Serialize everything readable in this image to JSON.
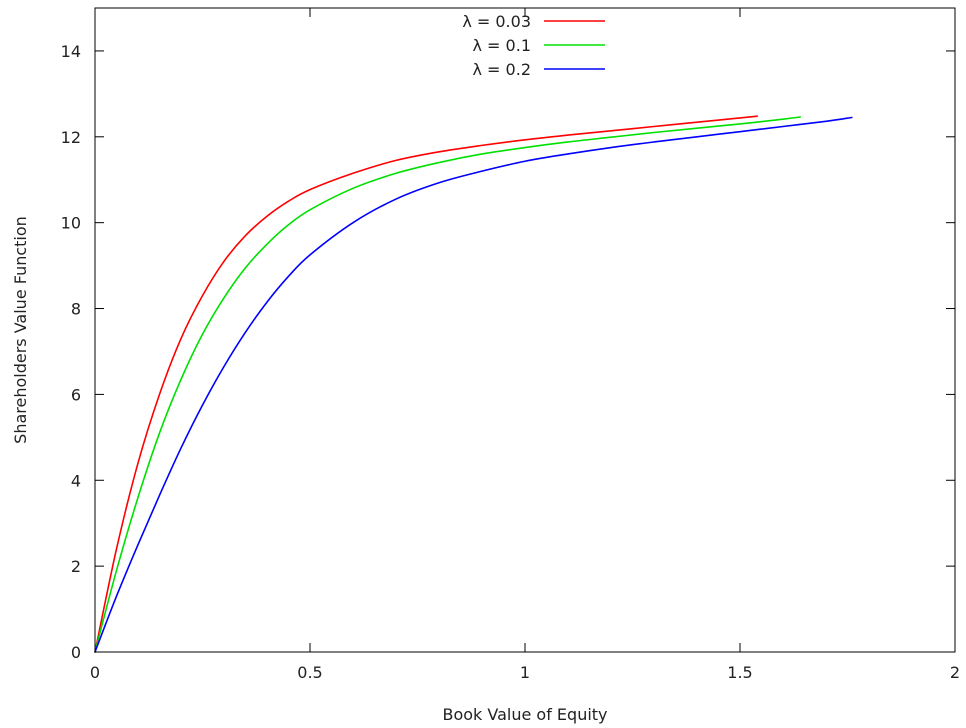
{
  "chart_data": {
    "type": "line",
    "title": "",
    "xlabel": "Book Value of Equity",
    "ylabel": "Shareholders Value Function",
    "xlim": [
      0,
      2
    ],
    "ylim": [
      0,
      15
    ],
    "x_ticks": [
      0,
      0.5,
      1,
      1.5,
      2
    ],
    "x_tick_labels": [
      "0",
      "0.5",
      "1",
      "1.5",
      "2"
    ],
    "y_ticks": [
      0,
      2,
      4,
      6,
      8,
      10,
      12,
      14
    ],
    "y_tick_labels": [
      "0",
      "2",
      "4",
      "6",
      "8",
      "10",
      "12",
      "14"
    ],
    "grid": false,
    "legend_position": "top-center",
    "series": [
      {
        "name": "λ = 0.03",
        "color": "#ff0000",
        "points": [
          [
            0,
            0
          ],
          [
            0.05,
            2.4
          ],
          [
            0.1,
            4.4
          ],
          [
            0.15,
            6.0
          ],
          [
            0.2,
            7.3
          ],
          [
            0.25,
            8.3
          ],
          [
            0.3,
            9.1
          ],
          [
            0.35,
            9.7
          ],
          [
            0.4,
            10.15
          ],
          [
            0.45,
            10.5
          ],
          [
            0.5,
            10.77
          ],
          [
            0.6,
            11.15
          ],
          [
            0.7,
            11.45
          ],
          [
            0.8,
            11.65
          ],
          [
            0.9,
            11.8
          ],
          [
            1.0,
            11.93
          ],
          [
            1.1,
            12.04
          ],
          [
            1.2,
            12.14
          ],
          [
            1.3,
            12.24
          ],
          [
            1.4,
            12.34
          ],
          [
            1.5,
            12.44
          ],
          [
            1.54,
            12.48
          ]
        ]
      },
      {
        "name": "λ = 0.1",
        "color": "#00e000",
        "points": [
          [
            0,
            0
          ],
          [
            0.05,
            1.9
          ],
          [
            0.1,
            3.6
          ],
          [
            0.15,
            5.1
          ],
          [
            0.2,
            6.35
          ],
          [
            0.25,
            7.4
          ],
          [
            0.3,
            8.25
          ],
          [
            0.35,
            8.95
          ],
          [
            0.4,
            9.5
          ],
          [
            0.45,
            9.95
          ],
          [
            0.5,
            10.3
          ],
          [
            0.6,
            10.8
          ],
          [
            0.7,
            11.15
          ],
          [
            0.8,
            11.4
          ],
          [
            0.9,
            11.6
          ],
          [
            1.0,
            11.75
          ],
          [
            1.1,
            11.88
          ],
          [
            1.2,
            11.99
          ],
          [
            1.3,
            12.1
          ],
          [
            1.4,
            12.2
          ],
          [
            1.5,
            12.3
          ],
          [
            1.6,
            12.41
          ],
          [
            1.64,
            12.46
          ]
        ]
      },
      {
        "name": "λ = 0.2",
        "color": "#0000ff",
        "points": [
          [
            0,
            0
          ],
          [
            0.05,
            1.3
          ],
          [
            0.1,
            2.5
          ],
          [
            0.15,
            3.65
          ],
          [
            0.2,
            4.75
          ],
          [
            0.25,
            5.75
          ],
          [
            0.3,
            6.65
          ],
          [
            0.35,
            7.45
          ],
          [
            0.4,
            8.15
          ],
          [
            0.45,
            8.75
          ],
          [
            0.5,
            9.25
          ],
          [
            0.6,
            10.0
          ],
          [
            0.7,
            10.55
          ],
          [
            0.8,
            10.93
          ],
          [
            0.9,
            11.2
          ],
          [
            1.0,
            11.43
          ],
          [
            1.1,
            11.6
          ],
          [
            1.2,
            11.75
          ],
          [
            1.3,
            11.88
          ],
          [
            1.4,
            12.0
          ],
          [
            1.5,
            12.12
          ],
          [
            1.6,
            12.24
          ],
          [
            1.7,
            12.36
          ],
          [
            1.76,
            12.45
          ]
        ]
      }
    ]
  }
}
